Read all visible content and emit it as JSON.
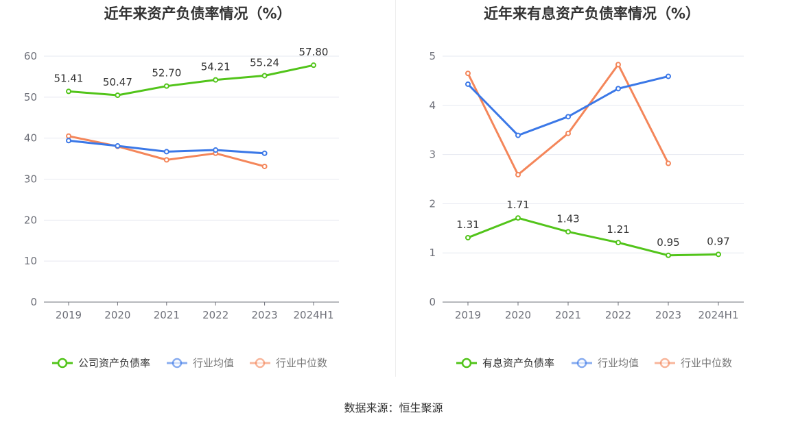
{
  "chart_data": [
    {
      "type": "line",
      "title": "近年来资产负债率情况（%）",
      "categories": [
        "2019",
        "2020",
        "2021",
        "2022",
        "2023",
        "2024H1"
      ],
      "ylim": [
        0,
        60
      ],
      "yticks": [
        0,
        10,
        20,
        30,
        40,
        50,
        60
      ],
      "grid": true,
      "legend_position": "bottom",
      "series": [
        {
          "name": "公司资产负债率",
          "color": "#52c41a",
          "values": [
            51.41,
            50.47,
            52.7,
            54.21,
            55.24,
            57.8
          ],
          "labels": [
            "51.41",
            "50.47",
            "52.70",
            "54.21",
            "55.24",
            "57.80"
          ]
        },
        {
          "name": "行业均值",
          "color": "#3b78e7",
          "values": [
            39.4,
            38.1,
            36.7,
            37.1,
            36.3,
            null
          ]
        },
        {
          "name": "行业中位数",
          "color": "#f4865a",
          "values": [
            40.5,
            38.0,
            34.7,
            36.3,
            33.1,
            null
          ]
        }
      ]
    },
    {
      "type": "line",
      "title": "近年来有息资产负债率情况（%）",
      "categories": [
        "2019",
        "2020",
        "2021",
        "2022",
        "2023",
        "2024H1"
      ],
      "ylim": [
        0,
        5
      ],
      "yticks": [
        0,
        1,
        2,
        3,
        4,
        5
      ],
      "grid": true,
      "legend_position": "bottom",
      "series": [
        {
          "name": "有息资产负债率",
          "color": "#52c41a",
          "values": [
            1.31,
            1.71,
            1.43,
            1.21,
            0.95,
            0.97
          ],
          "labels": [
            "1.31",
            "1.71",
            "1.43",
            "1.21",
            "0.95",
            "0.97"
          ]
        },
        {
          "name": "行业均值",
          "color": "#3b78e7",
          "values": [
            4.43,
            3.39,
            3.77,
            4.34,
            4.59,
            null
          ]
        },
        {
          "name": "行业中位数",
          "color": "#f4865a",
          "values": [
            4.65,
            2.59,
            3.43,
            4.83,
            2.82,
            null
          ]
        }
      ]
    }
  ],
  "source": "数据来源：恒生聚源"
}
